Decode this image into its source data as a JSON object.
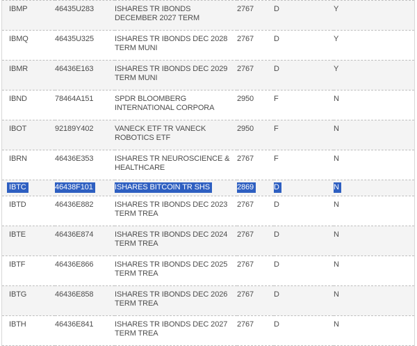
{
  "colors": {
    "selection_bg": "#2e5fc1",
    "selection_text": "#ffffff",
    "zebra_row_bg": "#f4f4f4",
    "default_row_bg": "#ffffff",
    "row_separator": "#bdbdbd",
    "table_edge": "#d8d8d8",
    "text": "#4c4c4c"
  },
  "table": {
    "rows": [
      {
        "ticker": "IBMP",
        "cusip": "46435U283",
        "name_lines": [
          "ISHARES TR IBONDS",
          "DECEMBER 2027 TERM"
        ],
        "code": "2767",
        "type": "D",
        "flag": "Y",
        "selected": false
      },
      {
        "ticker": "IBMQ",
        "cusip": "46435U325",
        "name_lines": [
          "ISHARES TR IBONDS DEC 2028",
          "TERM MUNI"
        ],
        "code": "2767",
        "type": "D",
        "flag": "Y",
        "selected": false
      },
      {
        "ticker": "IBMR",
        "cusip": "46436E163",
        "name_lines": [
          "ISHARES TR IBONDS DEC 2029",
          "TERM MUNI"
        ],
        "code": "2767",
        "type": "D",
        "flag": "Y",
        "selected": false
      },
      {
        "ticker": "IBND",
        "cusip": "78464A151",
        "name_lines": [
          "SPDR BLOOMBERG",
          "INTERNATIONAL CORPORA"
        ],
        "code": "2950",
        "type": "F",
        "flag": "N",
        "selected": false
      },
      {
        "ticker": "IBOT",
        "cusip": "92189Y402",
        "name_lines": [
          "VANECK ETF TR VANECK",
          "ROBOTICS ETF"
        ],
        "code": "2950",
        "type": "F",
        "flag": "N",
        "selected": false
      },
      {
        "ticker": "IBRN",
        "cusip": "46436E353",
        "name_lines": [
          "ISHARES TR NEUROSCIENCE &",
          "HEALTHCARE"
        ],
        "code": "2767",
        "type": "F",
        "flag": "N",
        "selected": false
      },
      {
        "ticker": "IBTC",
        "cusip": "46438F101",
        "name_lines": [
          "ISHARES BITCOIN TR SHS"
        ],
        "code": "2869",
        "type": "D",
        "flag": "N",
        "selected": true
      },
      {
        "ticker": "IBTD",
        "cusip": "46436E882",
        "name_lines": [
          "ISHARES TR IBONDS DEC 2023",
          "TERM TREA"
        ],
        "code": "2767",
        "type": "D",
        "flag": "N",
        "selected": false
      },
      {
        "ticker": "IBTE",
        "cusip": "46436E874",
        "name_lines": [
          "ISHARES TR IBONDS DEC 2024",
          "TERM TREA"
        ],
        "code": "2767",
        "type": "D",
        "flag": "N",
        "selected": false
      },
      {
        "ticker": "IBTF",
        "cusip": "46436E866",
        "name_lines": [
          "ISHARES TR IBONDS DEC 2025",
          "TERM TREA"
        ],
        "code": "2767",
        "type": "D",
        "flag": "N",
        "selected": false
      },
      {
        "ticker": "IBTG",
        "cusip": "46436E858",
        "name_lines": [
          "ISHARES TR IBONDS DEC 2026",
          "TERM TREA"
        ],
        "code": "2767",
        "type": "D",
        "flag": "N",
        "selected": false
      },
      {
        "ticker": "IBTH",
        "cusip": "46436E841",
        "name_lines": [
          "ISHARES TR IBONDS DEC 2027",
          "TERM TREA"
        ],
        "code": "2767",
        "type": "D",
        "flag": "N",
        "selected": false
      }
    ]
  }
}
